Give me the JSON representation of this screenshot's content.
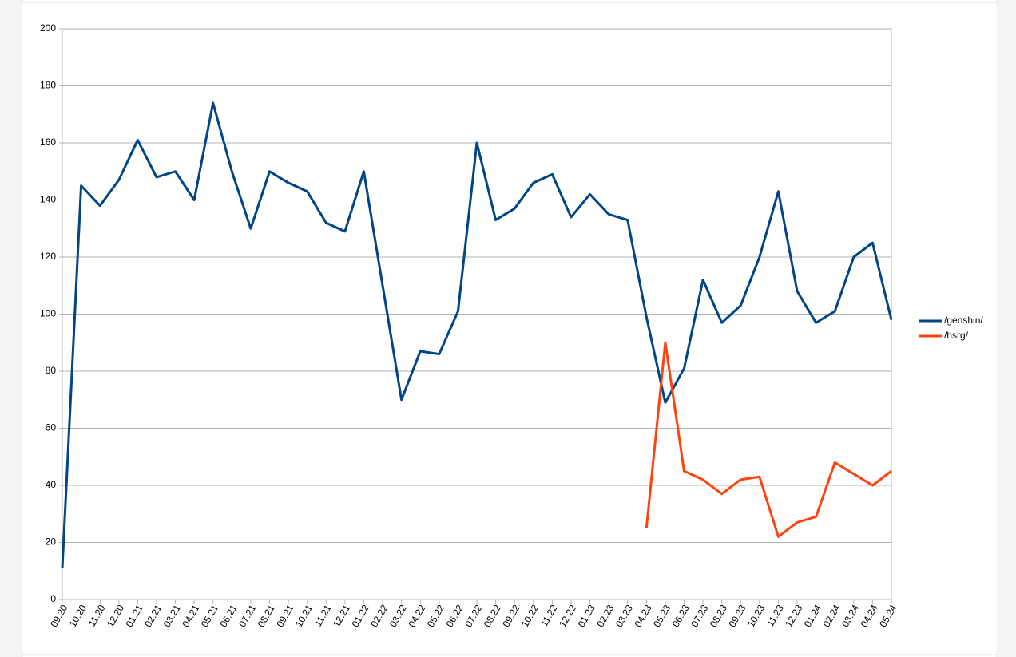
{
  "chart_data": {
    "type": "line",
    "categories": [
      "09.20",
      "10.20",
      "11.20",
      "12.20",
      "01.21",
      "02.21",
      "03.21",
      "04.21",
      "05.21",
      "06.21",
      "07.21",
      "08.21",
      "09.21",
      "10.21",
      "11.21",
      "12.21",
      "01.22",
      "02.22",
      "03.22",
      "04.22",
      "05.22",
      "06.22",
      "07.22",
      "08.22",
      "09.22",
      "10.22",
      "11.22",
      "12.22",
      "01.23",
      "02.23",
      "03.23",
      "04.23",
      "05.23",
      "06.23",
      "07.23",
      "08.23",
      "09.23",
      "10.23",
      "11.23",
      "12.23",
      "01.24",
      "02.24",
      "03.24",
      "04.24",
      "05.24"
    ],
    "series": [
      {
        "name": "/genshin/",
        "color": "#004586",
        "values": [
          11,
          145,
          138,
          147,
          161,
          148,
          150,
          140,
          174,
          150,
          130,
          150,
          146,
          143,
          132,
          129,
          150,
          110,
          70,
          87,
          86,
          101,
          160,
          133,
          137,
          146,
          149,
          134,
          142,
          135,
          133,
          99,
          69,
          81,
          112,
          97,
          103,
          120,
          143,
          108,
          97,
          101,
          120,
          125,
          98
        ]
      },
      {
        "name": "/hsrg/",
        "color": "#ff420e",
        "values": [
          null,
          null,
          null,
          null,
          null,
          null,
          null,
          null,
          null,
          null,
          null,
          null,
          null,
          null,
          null,
          null,
          null,
          null,
          null,
          null,
          null,
          null,
          null,
          null,
          null,
          null,
          null,
          null,
          null,
          null,
          null,
          25,
          90,
          45,
          42,
          37,
          42,
          43,
          22,
          27,
          29,
          48,
          44,
          40,
          45
        ]
      }
    ],
    "ylim": [
      0,
      200
    ],
    "yticks": [
      0,
      20,
      40,
      60,
      80,
      100,
      120,
      140,
      160,
      180,
      200
    ],
    "grid": true,
    "legend": "right"
  }
}
